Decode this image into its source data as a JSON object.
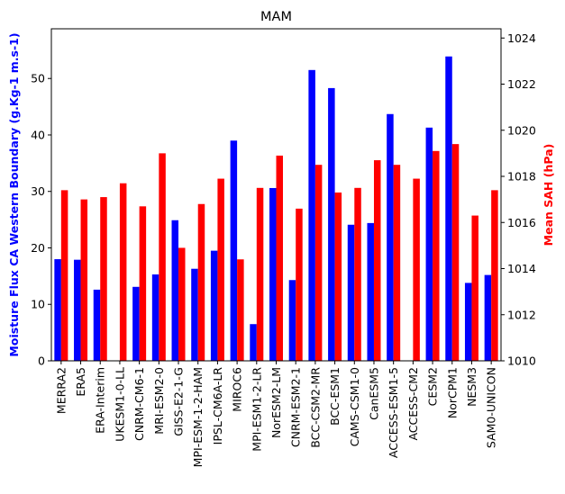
{
  "chart_data": {
    "type": "bar",
    "title": "MAM",
    "xlabel": "",
    "ylabel": "Moisture Flux CA Western Boundary (g.Kg-1 m.s-1)",
    "ylabel_right": "Mean SAH (hPa)",
    "ylim": [
      0,
      58.8
    ],
    "ylim_right": [
      1010,
      1024.4
    ],
    "yticks": [
      "0",
      "10",
      "20",
      "30",
      "40",
      "50"
    ],
    "yticks_right": [
      "1010",
      "1012",
      "1014",
      "1016",
      "1018",
      "1020",
      "1022",
      "1024"
    ],
    "categories": [
      "MERRA2",
      "ERA5",
      "ERA-Interim",
      "UKESM1-0-LL",
      "CNRM-CM6-1",
      "MRI-ESM2-0",
      "GISS-E2-1-G",
      "MPI-ESM-1-2-HAM",
      "IPSL-CM6A-LR",
      "MIROC6",
      "MPI-ESM1-2-LR",
      "NorESM2-LM",
      "CNRM-ESM2-1",
      "BCC-CSM2-MR",
      "BCC-ESM1",
      "CAMS-CSM1-0",
      "CanESM5",
      "ACCESS-ESM1-5",
      "ACCESS-CM2",
      "CESM2",
      "NorCPM1",
      "NESM3",
      "SAM0-UNICON"
    ],
    "series": [
      {
        "axis": "left",
        "color": "#0000ff",
        "values": [
          18.0,
          17.9,
          12.6,
          null,
          13.1,
          15.3,
          24.9,
          16.3,
          19.5,
          39.0,
          6.5,
          30.6,
          14.3,
          51.5,
          48.3,
          24.1,
          24.4,
          43.7,
          null,
          41.3,
          53.9,
          13.8,
          15.2
        ]
      },
      {
        "axis": "right",
        "color": "#ff0000",
        "values": [
          1017.4,
          1017.0,
          1017.1,
          1017.7,
          1016.7,
          1019.0,
          1014.9,
          1016.8,
          1017.9,
          1014.4,
          1017.5,
          1018.9,
          1016.6,
          1018.5,
          1017.3,
          1017.5,
          1018.7,
          1018.5,
          1017.9,
          1019.1,
          1019.4,
          1016.3,
          1017.4
        ]
      }
    ],
    "grid": false,
    "legend": "none"
  }
}
